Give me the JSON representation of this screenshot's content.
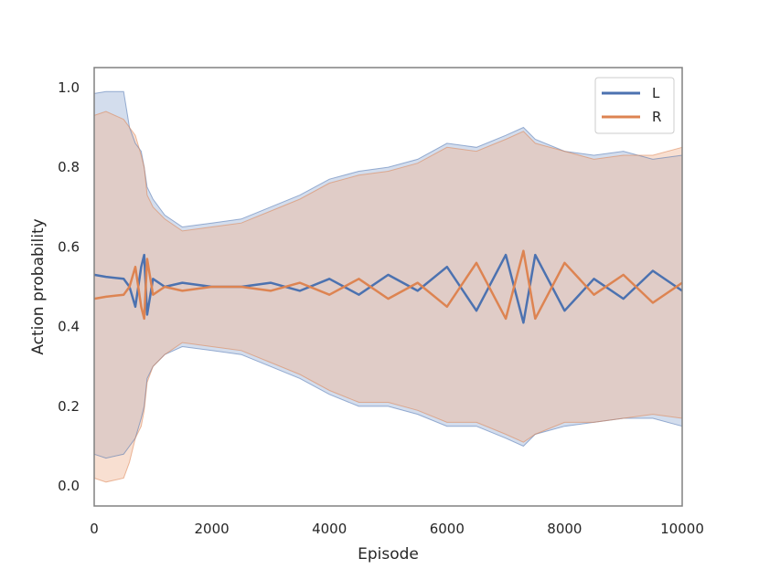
{
  "chart_data": {
    "type": "line",
    "title": "",
    "xlabel": "Episode",
    "ylabel": "Action probability",
    "xlim": [
      0,
      10000
    ],
    "ylim": [
      -0.05,
      1.05
    ],
    "xticks": [
      0,
      2000,
      4000,
      6000,
      8000,
      10000
    ],
    "xtick_labels": [
      "0",
      "2000",
      "4000",
      "6000",
      "8000",
      "10000"
    ],
    "yticks": [
      0.0,
      0.2,
      0.4,
      0.6,
      0.8,
      1.0
    ],
    "ytick_labels": [
      "0.0",
      "0.2",
      "0.4",
      "0.6",
      "0.8",
      "1.0"
    ],
    "grid": false,
    "legend_position": "top-right",
    "colors": {
      "L": "#4c72b0",
      "R": "#dd8452",
      "band_L": "#9db3d8",
      "band_R": "#f0b89a",
      "axes": "#808080"
    },
    "series": [
      {
        "name": "L",
        "x": [
          0,
          200,
          500,
          600,
          700,
          800,
          850,
          900,
          1000,
          1200,
          1500,
          2000,
          2500,
          3000,
          3500,
          4000,
          4500,
          5000,
          5500,
          6000,
          6500,
          7000,
          7300,
          7500,
          8000,
          8500,
          9000,
          9500,
          10000
        ],
        "values": [
          0.53,
          0.525,
          0.52,
          0.5,
          0.45,
          0.55,
          0.58,
          0.43,
          0.52,
          0.5,
          0.51,
          0.5,
          0.5,
          0.51,
          0.49,
          0.52,
          0.48,
          0.53,
          0.49,
          0.55,
          0.44,
          0.58,
          0.41,
          0.58,
          0.44,
          0.52,
          0.47,
          0.54,
          0.49
        ],
        "band_upper": [
          0.985,
          0.99,
          0.99,
          0.9,
          0.86,
          0.84,
          0.8,
          0.75,
          0.72,
          0.68,
          0.65,
          0.66,
          0.67,
          0.7,
          0.73,
          0.77,
          0.79,
          0.8,
          0.82,
          0.86,
          0.85,
          0.88,
          0.9,
          0.87,
          0.84,
          0.83,
          0.84,
          0.82,
          0.83
        ],
        "band_lower": [
          0.08,
          0.07,
          0.08,
          0.1,
          0.12,
          0.17,
          0.2,
          0.27,
          0.3,
          0.33,
          0.35,
          0.34,
          0.33,
          0.3,
          0.27,
          0.23,
          0.2,
          0.2,
          0.18,
          0.15,
          0.15,
          0.12,
          0.1,
          0.13,
          0.15,
          0.16,
          0.17,
          0.17,
          0.15
        ]
      },
      {
        "name": "R",
        "x": [
          0,
          200,
          500,
          600,
          700,
          800,
          850,
          900,
          1000,
          1200,
          1500,
          2000,
          2500,
          3000,
          3500,
          4000,
          4500,
          5000,
          5500,
          6000,
          6500,
          7000,
          7300,
          7500,
          8000,
          8500,
          9000,
          9500,
          10000
        ],
        "values": [
          0.47,
          0.475,
          0.48,
          0.5,
          0.55,
          0.45,
          0.42,
          0.57,
          0.48,
          0.5,
          0.49,
          0.5,
          0.5,
          0.49,
          0.51,
          0.48,
          0.52,
          0.47,
          0.51,
          0.45,
          0.56,
          0.42,
          0.59,
          0.42,
          0.56,
          0.48,
          0.53,
          0.46,
          0.51
        ],
        "band_upper": [
          0.93,
          0.94,
          0.92,
          0.9,
          0.88,
          0.83,
          0.8,
          0.73,
          0.7,
          0.67,
          0.64,
          0.65,
          0.66,
          0.69,
          0.72,
          0.76,
          0.78,
          0.79,
          0.81,
          0.85,
          0.84,
          0.87,
          0.89,
          0.86,
          0.84,
          0.82,
          0.83,
          0.83,
          0.85
        ],
        "band_lower": [
          0.02,
          0.01,
          0.02,
          0.06,
          0.12,
          0.15,
          0.19,
          0.26,
          0.3,
          0.33,
          0.36,
          0.35,
          0.34,
          0.31,
          0.28,
          0.24,
          0.21,
          0.21,
          0.19,
          0.16,
          0.16,
          0.13,
          0.11,
          0.13,
          0.16,
          0.16,
          0.17,
          0.18,
          0.17
        ]
      }
    ]
  }
}
